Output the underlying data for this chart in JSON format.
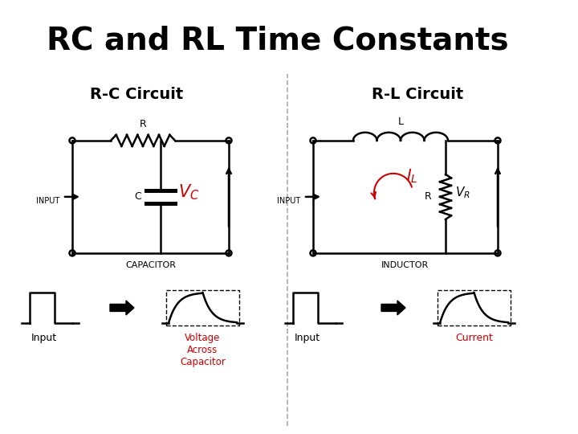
{
  "title": "RC and RL Time Constants",
  "title_bg_color": "#E8A97C",
  "title_fontsize": 28,
  "title_fontweight": "bold",
  "left_subtitle": "R-C Circuit",
  "right_subtitle": "R-L Circuit",
  "subtitle_fontsize": 14,
  "subtitle_fontweight": "bold",
  "bg_color": "#FFFFFF",
  "divider_color": "#AAAAAA",
  "red_color": "#CC0000",
  "black_color": "#000000",
  "label_input": "Input",
  "label_vc": "Voltage\nAcross\nCapacitor",
  "label_current": "Current"
}
